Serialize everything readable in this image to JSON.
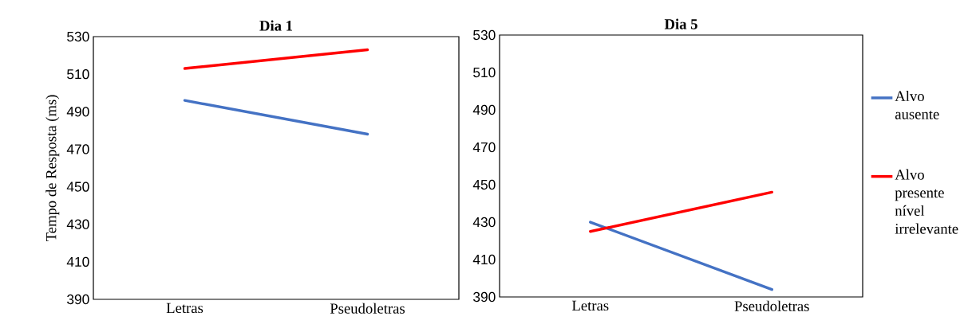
{
  "chart_data": [
    {
      "type": "line",
      "title": "Dia 1",
      "ylabel": "Tempo de Resposta (ms)",
      "categories": [
        "Letras",
        "Pseudoletras"
      ],
      "series": [
        {
          "color": "#4472c4",
          "values": [
            496,
            478
          ]
        },
        {
          "color": "#ff0000",
          "values": [
            513,
            523
          ]
        }
      ],
      "ylim": [
        390,
        530
      ],
      "yticks": [
        390,
        410,
        430,
        450,
        470,
        490,
        510,
        530
      ]
    },
    {
      "type": "line",
      "title": "Dia 5",
      "categories": [
        "Letras",
        "Pseudoletras"
      ],
      "series": [
        {
          "name": "Alvo ausente",
          "color": "#4472c4",
          "values": [
            430,
            394
          ]
        },
        {
          "name": "Alvo presente nível irrelevante",
          "color": "#ff0000",
          "values": [
            425,
            446
          ]
        }
      ],
      "ylim": [
        390,
        530
      ],
      "yticks": [
        390,
        410,
        430,
        450,
        470,
        490,
        510,
        530
      ],
      "legend": "right"
    }
  ]
}
